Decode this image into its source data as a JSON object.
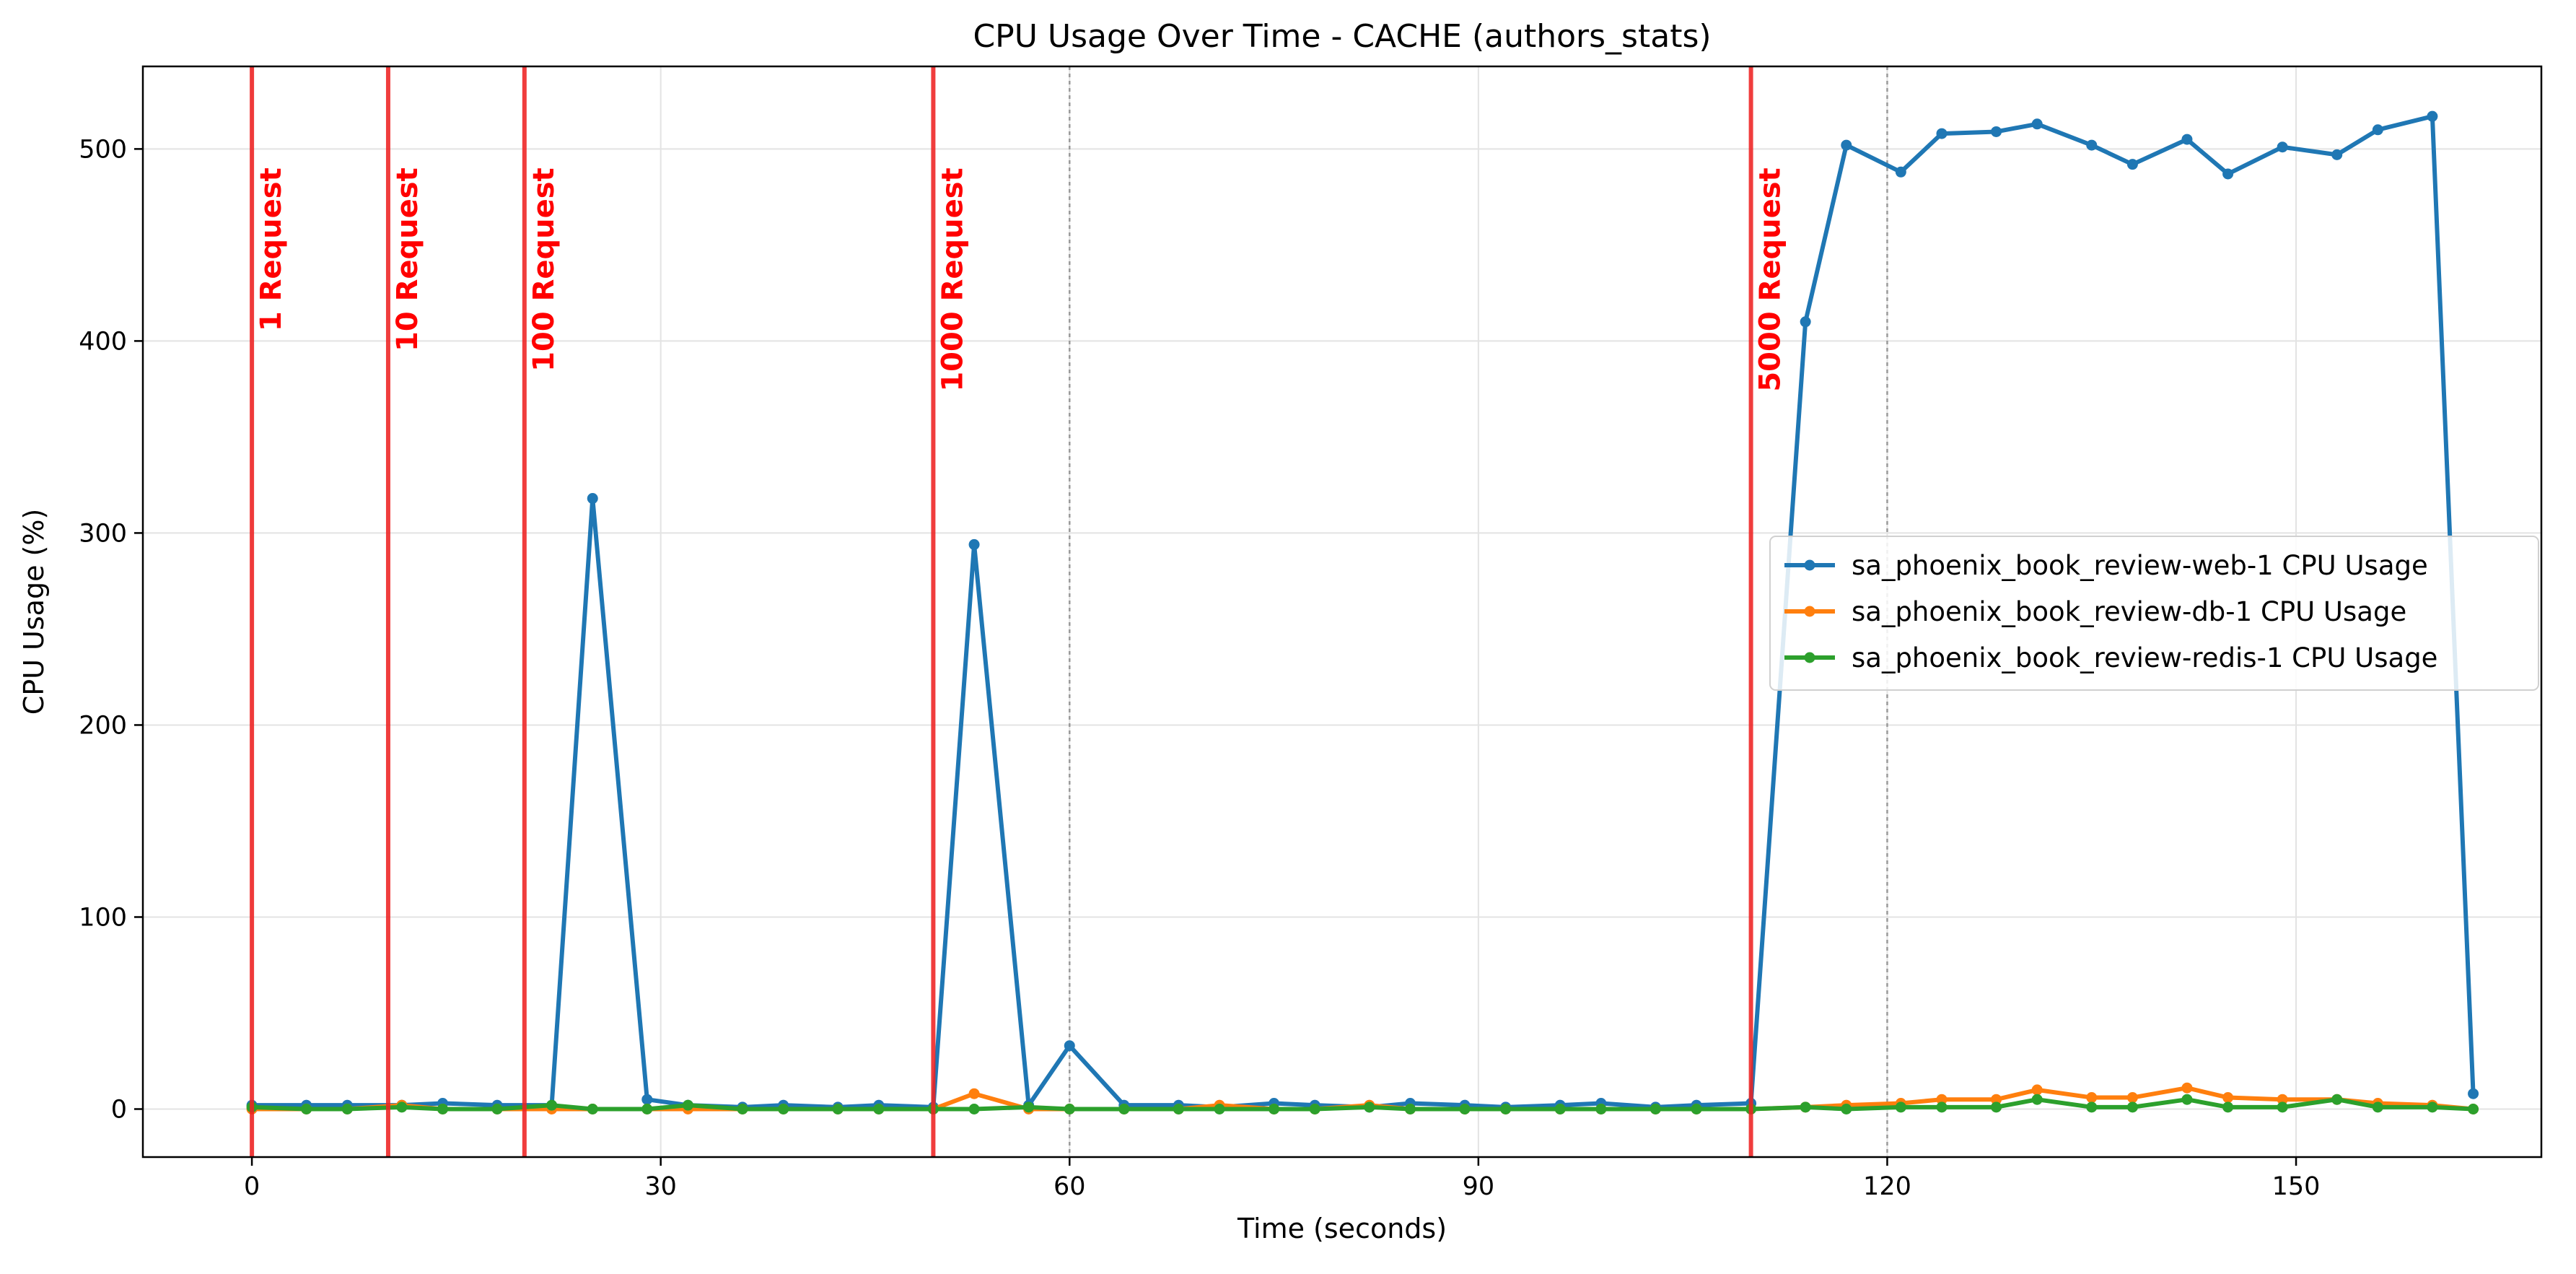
{
  "chart_data": {
    "type": "line",
    "title": "CPU Usage Over Time - CACHE (authors_stats)",
    "xlabel": "Time (seconds)",
    "ylabel": "CPU Usage (%)",
    "xlim": [
      -8,
      168
    ],
    "ylim": [
      -25,
      543
    ],
    "xticks": [
      0,
      30,
      60,
      90,
      120,
      150
    ],
    "yticks": [
      0,
      100,
      200,
      300,
      400,
      500
    ],
    "grid": true,
    "legend_position": "center-right",
    "colors": {
      "web": "#1f77b4",
      "db": "#ff7f0e",
      "redis": "#2ca02c",
      "markers": "#ee2222",
      "dotted": "#9a9a9a",
      "grid": "#e3e3e3"
    },
    "event_markers": [
      {
        "x": 0,
        "label": "1 Request"
      },
      {
        "x": 10,
        "label": "10 Request"
      },
      {
        "x": 20,
        "label": "100 Request"
      },
      {
        "x": 50,
        "label": "1000 Request"
      },
      {
        "x": 110,
        "label": "5000 Request"
      }
    ],
    "dotted_lines": [
      60,
      120
    ],
    "x": [
      0,
      4,
      7,
      11,
      14,
      18,
      22,
      25,
      29,
      32,
      36,
      39,
      43,
      46,
      50,
      53,
      57,
      60,
      64,
      68,
      71,
      75,
      78,
      82,
      85,
      89,
      92,
      96,
      99,
      103,
      106,
      110,
      114,
      117,
      121,
      124,
      128,
      131,
      135,
      138,
      142,
      145,
      149,
      153,
      156,
      160,
      163
    ],
    "series": [
      {
        "name": "sa_phoenix_book_review-web-1 CPU Usage",
        "color_key": "web",
        "values": [
          2,
          2,
          2,
          2,
          3,
          2,
          2,
          318,
          5,
          2,
          1,
          2,
          1,
          2,
          1,
          294,
          2,
          33,
          2,
          2,
          1,
          3,
          2,
          1,
          3,
          2,
          1,
          2,
          3,
          1,
          2,
          3,
          410,
          502,
          488,
          508,
          509,
          513,
          502,
          492,
          505,
          487,
          501,
          497,
          510,
          517,
          8
        ]
      },
      {
        "name": "sa_phoenix_book_review-db-1 CPU Usage",
        "color_key": "db",
        "values": [
          0,
          0,
          0,
          2,
          0,
          0,
          0,
          0,
          0,
          0,
          0,
          0,
          0,
          0,
          0,
          8,
          0,
          0,
          0,
          0,
          2,
          0,
          0,
          2,
          0,
          0,
          0,
          0,
          0,
          0,
          0,
          0,
          1,
          2,
          3,
          5,
          5,
          10,
          6,
          6,
          11,
          6,
          5,
          5,
          3,
          2,
          0
        ]
      },
      {
        "name": "sa_phoenix_book_review-redis-1 CPU Usage",
        "color_key": "redis",
        "values": [
          1,
          0,
          0,
          1,
          0,
          0,
          2,
          0,
          0,
          2,
          0,
          0,
          0,
          0,
          0,
          0,
          1,
          0,
          0,
          0,
          0,
          0,
          0,
          1,
          0,
          0,
          0,
          0,
          0,
          0,
          0,
          0,
          1,
          0,
          1,
          1,
          1,
          5,
          1,
          1,
          5,
          1,
          1,
          5,
          1,
          1,
          0
        ]
      }
    ]
  }
}
